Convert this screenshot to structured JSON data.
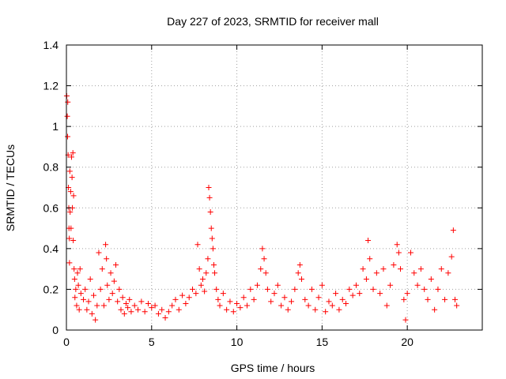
{
  "chart_data": {
    "type": "scatter",
    "title": "Day 227 of 2023, SRMTID for receiver mall",
    "xlabel": "GPS time / hours",
    "ylabel": "SRMTID / TECUs",
    "xlim": [
      0,
      24.4
    ],
    "ylim": [
      0,
      1.4
    ],
    "xticks": [
      0,
      5,
      10,
      15,
      20
    ],
    "yticks": [
      0,
      0.2,
      0.4,
      0.6,
      0.8,
      1,
      1.2,
      1.4
    ],
    "xtick_labels": [
      "0",
      "5",
      "10",
      "15",
      "20"
    ],
    "ytick_labels": [
      "0",
      "0.2",
      "0.4",
      "0.6",
      "0.8",
      "1",
      "1.2",
      "1.4"
    ],
    "grid": true,
    "marker": "+",
    "color": "#ff0000",
    "series": [
      {
        "name": "SRMTID",
        "points": [
          [
            0.02,
            1.15
          ],
          [
            0.05,
            1.05
          ],
          [
            0.07,
            0.95
          ],
          [
            0.08,
            1.12
          ],
          [
            0.1,
            0.86
          ],
          [
            0.12,
            0.7
          ],
          [
            0.14,
            0.6
          ],
          [
            0.15,
            0.5
          ],
          [
            0.17,
            0.45
          ],
          [
            0.18,
            0.33
          ],
          [
            0.2,
            0.78
          ],
          [
            0.22,
            0.58
          ],
          [
            0.25,
            0.68
          ],
          [
            0.27,
            0.5
          ],
          [
            0.3,
            0.85
          ],
          [
            0.33,
            0.75
          ],
          [
            0.35,
            0.6
          ],
          [
            0.38,
            0.87
          ],
          [
            0.4,
            0.44
          ],
          [
            0.42,
            0.66
          ],
          [
            0.45,
            0.3
          ],
          [
            0.48,
            0.25
          ],
          [
            0.5,
            0.16
          ],
          [
            0.55,
            0.2
          ],
          [
            0.6,
            0.12
          ],
          [
            0.65,
            0.28
          ],
          [
            0.7,
            0.22
          ],
          [
            0.75,
            0.1
          ],
          [
            0.8,
            0.3
          ],
          [
            0.85,
            0.18
          ],
          [
            1.0,
            0.15
          ],
          [
            1.1,
            0.2
          ],
          [
            1.2,
            0.1
          ],
          [
            1.3,
            0.14
          ],
          [
            1.4,
            0.25
          ],
          [
            1.5,
            0.08
          ],
          [
            1.6,
            0.17
          ],
          [
            1.7,
            0.05
          ],
          [
            1.8,
            0.12
          ],
          [
            1.9,
            0.38
          ],
          [
            2.0,
            0.2
          ],
          [
            2.1,
            0.3
          ],
          [
            2.2,
            0.12
          ],
          [
            2.3,
            0.42
          ],
          [
            2.35,
            0.35
          ],
          [
            2.4,
            0.22
          ],
          [
            2.5,
            0.15
          ],
          [
            2.6,
            0.28
          ],
          [
            2.7,
            0.18
          ],
          [
            2.8,
            0.24
          ],
          [
            2.9,
            0.32
          ],
          [
            3.0,
            0.14
          ],
          [
            3.1,
            0.2
          ],
          [
            3.2,
            0.1
          ],
          [
            3.3,
            0.16
          ],
          [
            3.4,
            0.08
          ],
          [
            3.5,
            0.13
          ],
          [
            3.6,
            0.11
          ],
          [
            3.7,
            0.15
          ],
          [
            3.8,
            0.09
          ],
          [
            4.0,
            0.12
          ],
          [
            4.2,
            0.1
          ],
          [
            4.4,
            0.14
          ],
          [
            4.6,
            0.09
          ],
          [
            4.8,
            0.13
          ],
          [
            5.0,
            0.11
          ],
          [
            5.2,
            0.12
          ],
          [
            5.4,
            0.08
          ],
          [
            5.6,
            0.1
          ],
          [
            5.8,
            0.06
          ],
          [
            6.0,
            0.09
          ],
          [
            6.2,
            0.12
          ],
          [
            6.4,
            0.15
          ],
          [
            6.6,
            0.1
          ],
          [
            6.8,
            0.17
          ],
          [
            7.0,
            0.13
          ],
          [
            7.2,
            0.16
          ],
          [
            7.4,
            0.2
          ],
          [
            7.6,
            0.18
          ],
          [
            7.7,
            0.42
          ],
          [
            7.8,
            0.3
          ],
          [
            7.9,
            0.22
          ],
          [
            8.0,
            0.25
          ],
          [
            8.1,
            0.19
          ],
          [
            8.2,
            0.28
          ],
          [
            8.3,
            0.35
          ],
          [
            8.35,
            0.7
          ],
          [
            8.4,
            0.65
          ],
          [
            8.45,
            0.58
          ],
          [
            8.5,
            0.5
          ],
          [
            8.55,
            0.45
          ],
          [
            8.6,
            0.4
          ],
          [
            8.65,
            0.32
          ],
          [
            8.7,
            0.28
          ],
          [
            8.8,
            0.2
          ],
          [
            8.9,
            0.15
          ],
          [
            9.0,
            0.12
          ],
          [
            9.2,
            0.18
          ],
          [
            9.4,
            0.1
          ],
          [
            9.6,
            0.14
          ],
          [
            9.8,
            0.09
          ],
          [
            10.0,
            0.13
          ],
          [
            10.2,
            0.11
          ],
          [
            10.4,
            0.16
          ],
          [
            10.6,
            0.12
          ],
          [
            10.8,
            0.2
          ],
          [
            11.0,
            0.15
          ],
          [
            11.2,
            0.22
          ],
          [
            11.4,
            0.3
          ],
          [
            11.5,
            0.4
          ],
          [
            11.6,
            0.35
          ],
          [
            11.7,
            0.28
          ],
          [
            11.8,
            0.2
          ],
          [
            12.0,
            0.14
          ],
          [
            12.2,
            0.18
          ],
          [
            12.4,
            0.22
          ],
          [
            12.6,
            0.12
          ],
          [
            12.8,
            0.16
          ],
          [
            13.0,
            0.1
          ],
          [
            13.2,
            0.14
          ],
          [
            13.4,
            0.2
          ],
          [
            13.6,
            0.28
          ],
          [
            13.7,
            0.32
          ],
          [
            13.8,
            0.25
          ],
          [
            14.0,
            0.15
          ],
          [
            14.2,
            0.12
          ],
          [
            14.4,
            0.2
          ],
          [
            14.6,
            0.1
          ],
          [
            14.8,
            0.16
          ],
          [
            15.0,
            0.22
          ],
          [
            15.2,
            0.09
          ],
          [
            15.4,
            0.14
          ],
          [
            15.6,
            0.12
          ],
          [
            15.8,
            0.18
          ],
          [
            16.0,
            0.1
          ],
          [
            16.2,
            0.15
          ],
          [
            16.4,
            0.13
          ],
          [
            16.6,
            0.2
          ],
          [
            16.8,
            0.17
          ],
          [
            17.0,
            0.22
          ],
          [
            17.2,
            0.18
          ],
          [
            17.4,
            0.3
          ],
          [
            17.6,
            0.25
          ],
          [
            17.7,
            0.44
          ],
          [
            17.8,
            0.35
          ],
          [
            18.0,
            0.2
          ],
          [
            18.2,
            0.28
          ],
          [
            18.4,
            0.18
          ],
          [
            18.6,
            0.3
          ],
          [
            18.8,
            0.12
          ],
          [
            19.0,
            0.22
          ],
          [
            19.2,
            0.32
          ],
          [
            19.4,
            0.42
          ],
          [
            19.5,
            0.38
          ],
          [
            19.6,
            0.3
          ],
          [
            19.8,
            0.15
          ],
          [
            19.9,
            0.05
          ],
          [
            20.0,
            0.18
          ],
          [
            20.2,
            0.38
          ],
          [
            20.4,
            0.28
          ],
          [
            20.6,
            0.22
          ],
          [
            20.8,
            0.3
          ],
          [
            21.0,
            0.2
          ],
          [
            21.2,
            0.15
          ],
          [
            21.4,
            0.25
          ],
          [
            21.6,
            0.1
          ],
          [
            21.8,
            0.2
          ],
          [
            22.0,
            0.3
          ],
          [
            22.2,
            0.15
          ],
          [
            22.4,
            0.28
          ],
          [
            22.6,
            0.36
          ],
          [
            22.7,
            0.49
          ],
          [
            22.8,
            0.15
          ],
          [
            22.9,
            0.12
          ]
        ]
      }
    ]
  }
}
